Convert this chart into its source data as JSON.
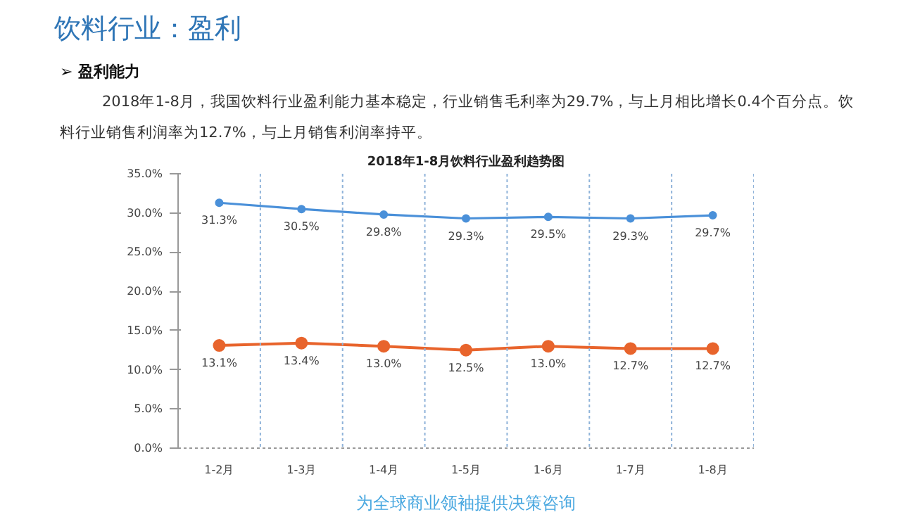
{
  "chart_data": {
    "type": "line",
    "title": "2018年1-8月饮料行业盈利趋势图",
    "annotations": [
      "饮料行业：盈利",
      "➢  盈利能力",
      "2018年1-8月，我国饮料行业盈利能力基本稳定，行业销售毛利率为29.7%，与上月相比增长0.4个百分点。饮",
      "料行业销售利润率为12.7%，与上月销售利润率持平。",
      "为全球商业领袖提供决策咨询"
    ],
    "categories": [
      "1-2月",
      "1-3月",
      "1-4月",
      "1-5月",
      "1-6月",
      "1-7月",
      "1-8月"
    ],
    "series": [
      {
        "color": "#4a90d9",
        "values": [
          31.3,
          30.5,
          29.8,
          29.3,
          29.5,
          29.3,
          29.7
        ]
      },
      {
        "color": "#e8642c",
        "values": [
          13.1,
          13.4,
          13.0,
          12.5,
          13.0,
          12.7,
          12.7
        ]
      }
    ],
    "value_labels": [
      [
        "31.3%",
        "30.5%",
        "29.8%",
        "29.3%",
        "29.5%",
        "29.3%",
        "29.7%"
      ],
      [
        "13.1%",
        "13.4%",
        "13.0%",
        "12.5%",
        "13.0%",
        "12.7%",
        "12.7%"
      ]
    ],
    "ylim": [
      0,
      35
    ],
    "yticks": [
      {
        "value": 0,
        "label": "0.0%"
      },
      {
        "value": 5,
        "label": "5.0%"
      },
      {
        "value": 10,
        "label": "10.0%"
      },
      {
        "value": 15,
        "label": "15.0%"
      },
      {
        "value": 20,
        "label": "20.0%"
      },
      {
        "value": 25,
        "label": "25.0%"
      },
      {
        "value": 30,
        "label": "30.0%"
      },
      {
        "value": 35,
        "label": "35.0%"
      }
    ],
    "grid": "x",
    "marker": "circle",
    "line_style": "solid"
  }
}
